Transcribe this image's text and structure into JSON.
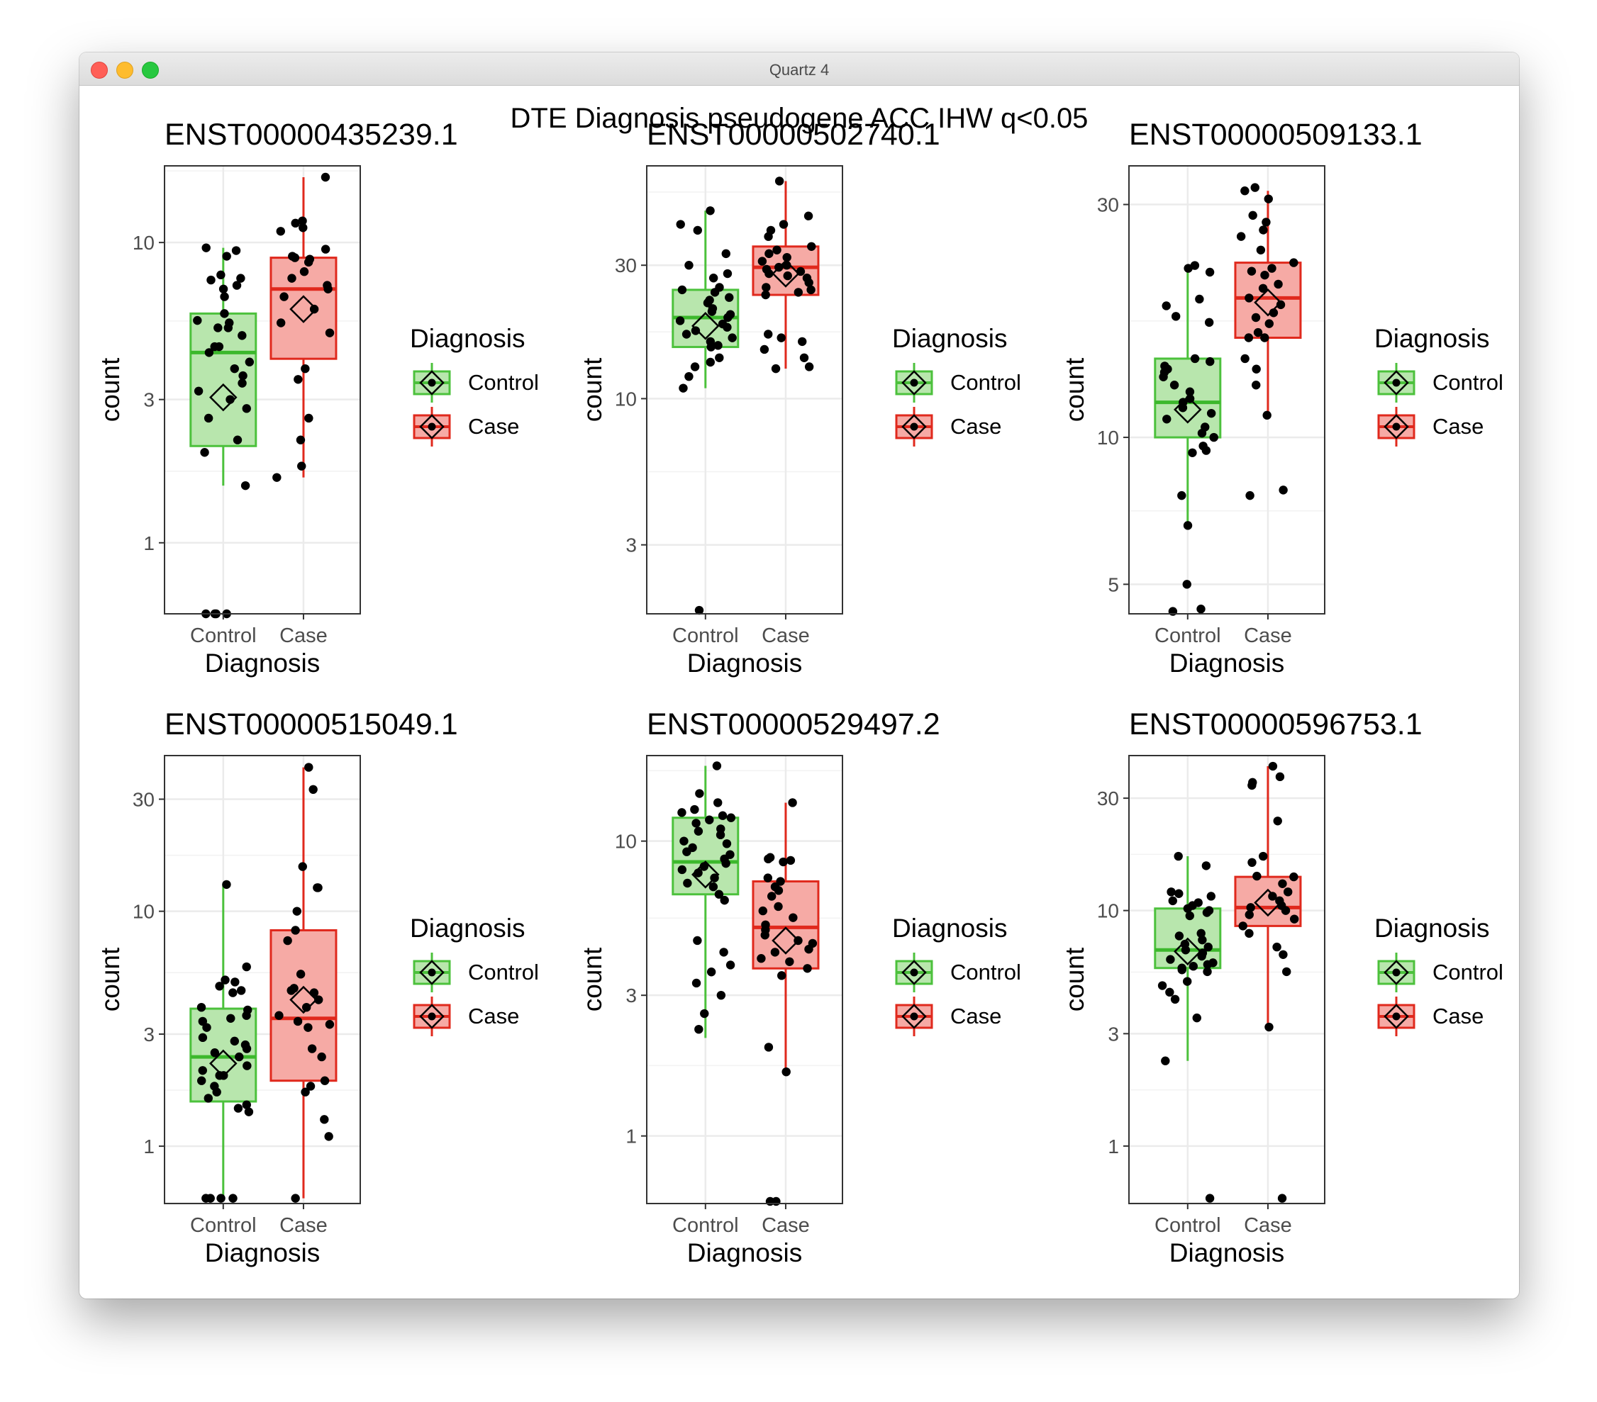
{
  "window": {
    "title": "Quartz 4"
  },
  "colors": {
    "control_fill": "#b8e6ad",
    "control_line": "#4cc13c",
    "control_median": "#3cb82c",
    "case_fill": "#f6aaa5",
    "case_line": "#e0291d",
    "case_median": "#e0291d",
    "grid": "#ebebeb",
    "panel_border": "#333333",
    "point": "#000000"
  },
  "chart_data": {
    "type": "box",
    "title": "DTE Diagnosis pseudogene ACC IHW q<0.05",
    "yscale": "log",
    "categories": [
      "Control",
      "Case"
    ],
    "xlabel": "Diagnosis",
    "ylabel": "count",
    "legend": {
      "title": "Diagnosis",
      "entries": [
        "Control",
        "Case"
      ],
      "position": "right"
    },
    "panels": [
      {
        "title": "ENST00000435239.1",
        "ylim": [
          0.58,
          18
        ],
        "yticks": [
          1,
          3,
          10
        ],
        "ytick_labels": [
          "1",
          "3",
          "10"
        ],
        "groups": [
          {
            "name": "Control",
            "box": {
              "q1": 2.1,
              "median": 4.3,
              "q3": 5.8,
              "whisker_low": 1.55,
              "whisker_high": 9.6
            },
            "mean": 3.05,
            "points": [
              9.6,
              9.4,
              9.0,
              7.8,
              7.5,
              7.6,
              7.2,
              7.0,
              6.6,
              5.8,
              5.5,
              5.2,
              5.4,
              5.2,
              4.9,
              4.5,
              4.5,
              4.3,
              4.0,
              3.8,
              3.6,
              3.4,
              3.2,
              3.0,
              2.8,
              2.6,
              2.2,
              2.0,
              1.55,
              0.58,
              0.58,
              0.58,
              0.58
            ]
          },
          {
            "name": "Case",
            "box": {
              "q1": 4.1,
              "median": 7.0,
              "q3": 8.9,
              "whisker_low": 1.65,
              "whisker_high": 16.5
            },
            "mean": 6.0,
            "points": [
              16.5,
              11.8,
              11.6,
              11.2,
              10.9,
              9.5,
              9.0,
              8.9,
              8.8,
              8.6,
              8.0,
              7.6,
              7.2,
              7.0,
              6.6,
              6.0,
              5.4,
              5.0,
              3.8,
              3.5,
              2.6,
              2.2,
              1.8,
              1.65
            ]
          }
        ]
      },
      {
        "title": "ENST00000502740.1",
        "ylim": [
          1.7,
          68
        ],
        "yticks": [
          3,
          10,
          30
        ],
        "ytick_labels": [
          "3",
          "10",
          "30"
        ],
        "groups": [
          {
            "name": "Control",
            "box": {
              "q1": 15.3,
              "median": 19.5,
              "q3": 24.5,
              "whisker_low": 10.9,
              "whisker_high": 47
            },
            "mean": 18.2,
            "points": [
              47,
              42,
              40,
              33,
              30,
              28,
              27,
              25,
              24.5,
              24,
              23,
              22.5,
              22,
              21,
              20.5,
              20,
              19.5,
              19,
              18.5,
              18,
              17.5,
              17,
              16.5,
              16,
              15.5,
              15.3,
              14,
              13.5,
              13,
              12,
              10.9,
              1.75
            ]
          },
          {
            "name": "Case",
            "box": {
              "q1": 23.5,
              "median": 29.5,
              "q3": 35,
              "whisker_low": 12.8,
              "whisker_high": 60
            },
            "mean": 28.0,
            "points": [
              60,
              45,
              42,
              40,
              38,
              35,
              34,
              33,
              32,
              31,
              30,
              29.5,
              29,
              28.5,
              28,
              27.5,
              27,
              26,
              25,
              24.5,
              24,
              23.5,
              17,
              16.5,
              16,
              15,
              14,
              13,
              12.8
            ]
          }
        ]
      },
      {
        "title": "ENST00000509133.1",
        "ylim": [
          4.35,
          36
        ],
        "yticks": [
          5,
          10,
          30
        ],
        "ytick_labels": [
          "5",
          "10",
          "30"
        ],
        "groups": [
          {
            "name": "Control",
            "box": {
              "q1": 10.0,
              "median": 11.8,
              "q3": 14.5,
              "whisker_low": 6.7,
              "whisker_high": 22.5
            },
            "mean": 11.4,
            "points": [
              22.5,
              22.2,
              21.8,
              19.2,
              18.6,
              17.7,
              17.2,
              14.5,
              14.3,
              14.0,
              13.8,
              13.6,
              13.3,
              12.8,
              12.4,
              12.0,
              11.8,
              11.5,
              11.2,
              10.9,
              10.5,
              10.2,
              10.0,
              9.6,
              9.4,
              9.3,
              7.6,
              6.6,
              5.0,
              4.45,
              4.4
            ]
          },
          {
            "name": "Case",
            "box": {
              "q1": 16.0,
              "median": 19.3,
              "q3": 22.8,
              "whisker_low": 11.1,
              "whisker_high": 32
            },
            "mean": 18.9,
            "points": [
              32.5,
              32,
              30.8,
              28.5,
              27.6,
              26.6,
              25.8,
              24.2,
              22.8,
              22.2,
              21.9,
              21.5,
              20.6,
              20.2,
              19.3,
              18.7,
              18.0,
              17.6,
              17.1,
              16.4,
              16.0,
              16.0,
              14.5,
              13.8,
              12.8,
              11.1,
              7.8,
              7.6
            ]
          }
        ]
      },
      {
        "title": "ENST00000515049.1",
        "ylim": [
          0.57,
          46
        ],
        "yticks": [
          1,
          3,
          10,
          30
        ],
        "ytick_labels": [
          "1",
          "3",
          "10",
          "30"
        ],
        "groups": [
          {
            "name": "Control",
            "box": {
              "q1": 1.55,
              "median": 2.4,
              "q3": 3.85,
              "whisker_low": 0.6,
              "whisker_high": 13
            },
            "mean": 2.25,
            "points": [
              13,
              5.8,
              5.0,
              5.1,
              4.8,
              4.6,
              4.5,
              3.9,
              3.8,
              3.6,
              3.5,
              3.4,
              3.2,
              2.9,
              2.8,
              2.7,
              2.6,
              2.5,
              2.4,
              2.2,
              2.1,
              2.0,
              2.0,
              1.9,
              1.8,
              1.7,
              1.6,
              1.5,
              1.45,
              1.4,
              0.6,
              0.6,
              0.6,
              0.6
            ]
          },
          {
            "name": "Case",
            "box": {
              "q1": 1.9,
              "median": 3.5,
              "q3": 8.3,
              "whisker_low": 0.6,
              "whisker_high": 41
            },
            "mean": 4.2,
            "points": [
              41,
              33,
              15.5,
              12.6,
              12.6,
              10.0,
              8.3,
              7.5,
              5.4,
              4.7,
              4.6,
              4.5,
              4.2,
              3.9,
              3.6,
              3.4,
              3.3,
              3.2,
              2.6,
              2.4,
              1.9,
              1.8,
              1.7,
              1.3,
              1.1,
              0.6
            ]
          }
        ]
      },
      {
        "title": "ENST00000529497.2",
        "ylim": [
          0.59,
          19.5
        ],
        "yticks": [
          1,
          3,
          10
        ],
        "ytick_labels": [
          "1",
          "3",
          "10"
        ],
        "groups": [
          {
            "name": "Control",
            "box": {
              "q1": 6.6,
              "median": 8.5,
              "q3": 12.0,
              "whisker_low": 2.15,
              "whisker_high": 18.0
            },
            "mean": 7.7,
            "points": [
              18,
              14.5,
              13.5,
              12.8,
              12.5,
              12.2,
              12.0,
              11.8,
              11.5,
              11.0,
              10.8,
              10.5,
              10.0,
              9.8,
              9.5,
              9.2,
              9.0,
              8.7,
              8.4,
              8.2,
              8.0,
              7.8,
              7.5,
              7.2,
              7.0,
              6.6,
              6.3,
              4.6,
              4.2,
              3.8,
              3.6,
              3.3,
              3.0,
              2.6,
              2.3
            ]
          },
          {
            "name": "Case",
            "box": {
              "q1": 3.7,
              "median": 5.1,
              "q3": 7.3,
              "whisker_low": 1.65,
              "whisker_high": 13.5
            },
            "mean": 4.6,
            "points": [
              13.5,
              8.8,
              8.7,
              8.6,
              8.5,
              7.5,
              7.3,
              7.0,
              6.8,
              6.5,
              6.0,
              5.8,
              5.5,
              5.2,
              5.0,
              4.8,
              4.6,
              4.5,
              4.3,
              4.2,
              4.0,
              3.9,
              3.7,
              3.5,
              2.0,
              1.65,
              0.6,
              0.6
            ]
          }
        ]
      },
      {
        "title": "ENST00000596753.1",
        "ylim": [
          0.57,
          45.5
        ],
        "yticks": [
          1,
          3,
          10,
          30
        ],
        "ytick_labels": [
          "1",
          "3",
          "10",
          "30"
        ],
        "groups": [
          {
            "name": "Control",
            "box": {
              "q1": 5.7,
              "median": 6.8,
              "q3": 10.2,
              "whisker_low": 2.3,
              "whisker_high": 17.0
            },
            "mean": 6.7,
            "points": [
              17.0,
              15.5,
              12.0,
              11.8,
              11.5,
              11.0,
              10.8,
              10.5,
              10.2,
              10.0,
              9.8,
              9.5,
              8.0,
              7.8,
              7.5,
              7.2,
              7.0,
              6.8,
              6.6,
              6.4,
              6.2,
              6.0,
              5.9,
              5.8,
              5.7,
              5.6,
              5.5,
              5.0,
              4.8,
              4.5,
              4.2,
              3.5,
              2.3,
              0.6
            ]
          },
          {
            "name": "Case",
            "box": {
              "q1": 8.6,
              "median": 10.3,
              "q3": 13.9,
              "whisker_low": 3.2,
              "whisker_high": 41
            },
            "mean": 10.8,
            "points": [
              41,
              37,
              35,
              34,
              24,
              17,
              16,
              14,
              13.9,
              13.0,
              12.0,
              11.5,
              11.0,
              10.5,
              10.3,
              10.0,
              9.6,
              9.2,
              8.6,
              8.0,
              7.0,
              6.5,
              5.5,
              3.2,
              0.6
            ]
          }
        ]
      }
    ]
  }
}
